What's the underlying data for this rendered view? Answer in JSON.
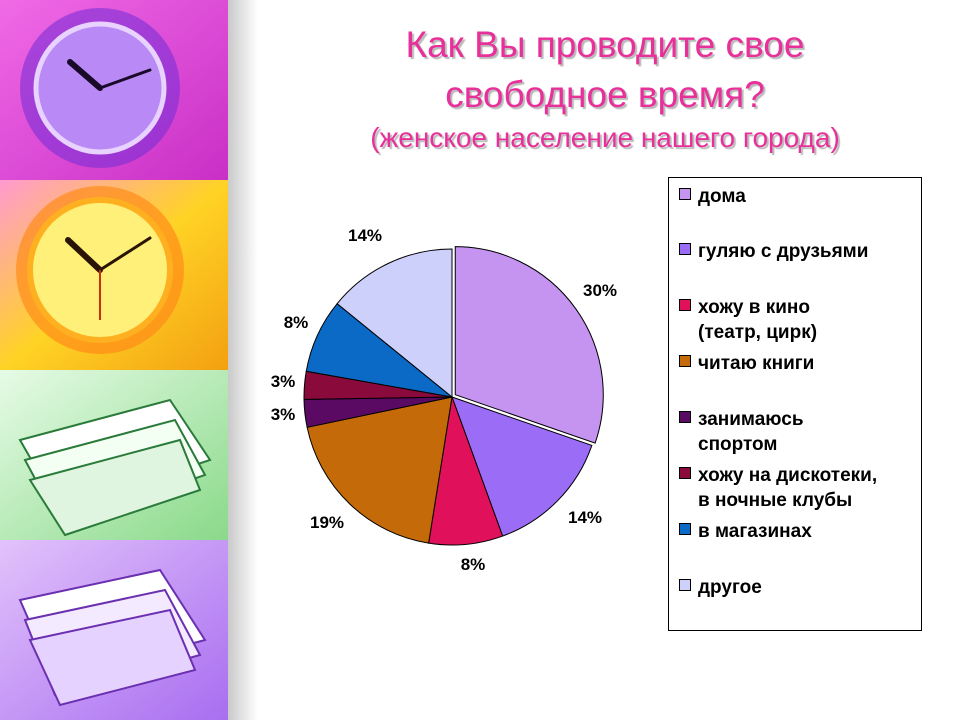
{
  "title": {
    "line1": "Как Вы проводите свое",
    "line2": "свободное время?",
    "subtitle": "(женское население нашего города)"
  },
  "chart_data": {
    "type": "pie",
    "title": "Как Вы проводите свое свободное время?",
    "subtitle": "(женское население нашего города)",
    "legend_position": "right",
    "slices": [
      {
        "label": "дома",
        "value": 30,
        "display": "30%",
        "color": "#c594f0"
      },
      {
        "label": "гуляю с друзьями",
        "value": 14,
        "display": "14%",
        "color": "#9b6cf5"
      },
      {
        "label": "хожу в кино (театр, цирк)",
        "value": 8,
        "display": "8%",
        "color": "#e0105a"
      },
      {
        "label": "читаю книги",
        "value": 19,
        "display": "19%",
        "color": "#c46a08"
      },
      {
        "label": "занимаюсь спортом",
        "value": 3,
        "display": "3%",
        "color": "#5a0a62"
      },
      {
        "label": "хожу на дискотеки, в ночные клубы",
        "value": 3,
        "display": "3%",
        "color": "#8a0a3c"
      },
      {
        "label": "в магазинах",
        "value": 8,
        "display": "8%",
        "color": "#0a6ac6"
      },
      {
        "label": "другое",
        "value": 14,
        "display": "14%",
        "color": "#cdd0fa"
      }
    ]
  },
  "legend": {
    "items": [
      {
        "lines": [
          "дома"
        ]
      },
      {
        "lines": [
          "гуляю с друзьями"
        ]
      },
      {
        "lines": [
          "хожу в кино",
          "(театр, цирк)"
        ]
      },
      {
        "lines": [
          "читаю книги"
        ]
      },
      {
        "lines": [
          "занимаюсь",
          "спортом"
        ]
      },
      {
        "lines": [
          "хожу на дискотеки,",
          "в ночные клубы"
        ]
      },
      {
        "lines": [
          "в магазинах"
        ]
      },
      {
        "lines": [
          "другое"
        ]
      }
    ]
  },
  "decor": {
    "strip_colors": [
      "#d93ad6",
      "#f6c91c",
      "#b7f0b6",
      "#c890f0"
    ],
    "clock_face_colors": [
      "#9a60f0",
      "#ffe86a"
    ]
  }
}
